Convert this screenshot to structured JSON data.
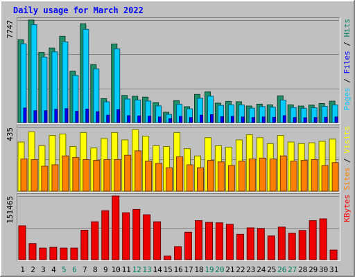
{
  "chart_data": {
    "type": "bar",
    "title": "Daily usage for March 2022",
    "categories": [
      "1",
      "2",
      "3",
      "4",
      "5",
      "6",
      "7",
      "8",
      "9",
      "10",
      "11",
      "12",
      "13",
      "14",
      "15",
      "16",
      "17",
      "18",
      "19",
      "20",
      "21",
      "22",
      "23",
      "24",
      "25",
      "26",
      "27",
      "28",
      "29",
      "30",
      "31"
    ],
    "weekend_days": [
      "5",
      "6",
      "12",
      "13",
      "19",
      "20",
      "26",
      "27"
    ],
    "panels": [
      {
        "id": "top",
        "ymax_label": "7747",
        "ymax": 7747,
        "right_label": [
          "Pages",
          "Files",
          "Hits"
        ],
        "right_label_colors": [
          "#00c8ff",
          "#0000ff",
          "#008060"
        ],
        "series": [
          {
            "name": "Hits",
            "color": "#1f8f6a",
            "values": [
              6260,
              7747,
              5310,
              5640,
              6520,
              3880,
              7470,
              4380,
              1810,
              5940,
              2050,
              1990,
              1920,
              1510,
              780,
              1660,
              1200,
              2130,
              2320,
              1470,
              1600,
              1570,
              1250,
              1390,
              1340,
              2020,
              1340,
              1250,
              1320,
              1440,
              1620
            ]
          },
          {
            "name": "Files",
            "color": "#00ccff",
            "values": [
              5950,
              7400,
              4950,
              5350,
              6100,
              3560,
              7050,
              4050,
              1570,
              5570,
              1780,
              1710,
              1630,
              1260,
              620,
              1380,
              1040,
              1830,
              2000,
              1300,
              1340,
              1330,
              1090,
              1210,
              1160,
              1700,
              1140,
              1080,
              1120,
              1230,
              1330
            ]
          },
          {
            "name": "Pages",
            "color": "#0000ff",
            "values": [
              1100,
              900,
              900,
              1000,
              1050,
              850,
              1020,
              820,
              560,
              980,
              520,
              500,
              480,
              420,
              300,
              460,
              380,
              560,
              600,
              440,
              460,
              420,
              380,
              420,
              400,
              520,
              380,
              360,
              380,
              400,
              420
            ]
          }
        ]
      },
      {
        "id": "middle",
        "ymax_label": "435",
        "ymax": 435,
        "right_label": [
          "Sites",
          "Visits"
        ],
        "right_label_colors": [
          "#ff8000",
          "#ffff00"
        ],
        "series": [
          {
            "name": "Visits",
            "color": "#ffff00",
            "values": [
              335,
              405,
              310,
              380,
              390,
              305,
              400,
              295,
              360,
              400,
              350,
              420,
              375,
              310,
              305,
              400,
              290,
              240,
              365,
              310,
              300,
              350,
              385,
              365,
              325,
              380,
              335,
              325,
              330,
              340,
              355
            ]
          },
          {
            "name": "Sites",
            "color": "#ff8000",
            "values": [
              220,
              215,
              170,
              180,
              240,
              230,
              215,
              210,
              215,
              215,
              245,
              275,
              205,
              190,
              160,
              235,
              180,
              160,
              210,
              200,
              175,
              205,
              220,
              225,
              220,
              240,
              205,
              210,
              215,
              175,
              195
            ]
          }
        ]
      },
      {
        "id": "bottom",
        "ymax_label": "151465",
        "ymax": 151465,
        "right_label": [
          "KBytes"
        ],
        "right_label_colors": [
          "#ff0000"
        ],
        "series": [
          {
            "name": "KBytes",
            "color": "#ee0000",
            "values": [
              80700,
              38300,
              27600,
              29400,
              27600,
              27600,
              70000,
              90200,
              116500,
              151465,
              111600,
              119500,
              106900,
              90200,
              8600,
              31100,
              65300,
              92900,
              88700,
              87800,
              84200,
              60500,
              75700,
              73900,
              56500,
              77500,
              63000,
              69400,
              92900,
              97100,
              22900
            ]
          }
        ]
      }
    ]
  }
}
